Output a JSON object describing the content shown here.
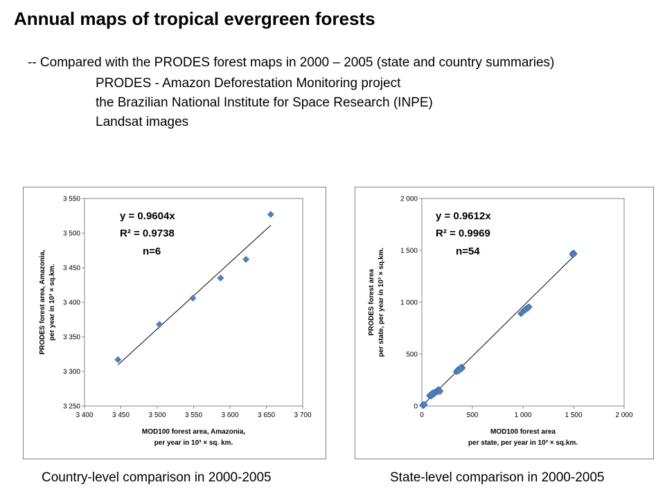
{
  "header": {
    "title": "Annual maps of tropical evergreen forests",
    "subtitle": "-- Compared with the PRODES forest maps in 2000 – 2005   (state and country summaries)",
    "lines": [
      "PRODES - Amazon Deforestation Monitoring project",
      "the Brazilian National Institute for Space Research (INPE)",
      "Landsat images"
    ]
  },
  "captions": {
    "left": "Country-level comparison in 2000-2005",
    "right": "State-level comparison in 2000-2005"
  },
  "colors": {
    "marker": "#4f81bd",
    "trendline": "#000000",
    "border": "#7f7f7f"
  },
  "chart_data": [
    {
      "type": "scatter",
      "xlabel_line1": "MOD100 forest area, Amazonia,",
      "xlabel_line2": "per year in 10³ × sq. km.",
      "ylabel_line1": "PRODES  forest area, Amazonia,",
      "ylabel_line2": "per year in 10³ × sq.km.",
      "xlim": [
        3400,
        3700
      ],
      "ylim": [
        3250,
        3550
      ],
      "xticks": [
        3400,
        3450,
        3500,
        3550,
        3600,
        3650,
        3700
      ],
      "yticks": [
        3250,
        3300,
        3350,
        3400,
        3450,
        3500,
        3550
      ],
      "xtick_labels": [
        "3 400",
        "3 450",
        "3 500",
        "3 550",
        "3 600",
        "3 650",
        "3 700"
      ],
      "ytick_labels": [
        "3 250",
        "3 300",
        "3 350",
        "3 400",
        "3 450",
        "3 500",
        "3 550"
      ],
      "points": [
        [
          3446,
          3317
        ],
        [
          3503,
          3368
        ],
        [
          3549,
          3406
        ],
        [
          3587,
          3435
        ],
        [
          3622,
          3462
        ],
        [
          3656,
          3527
        ]
      ],
      "trendline": {
        "slope": 0.9604,
        "x_range": [
          3446,
          3656
        ]
      },
      "annotations": [
        "y = 0.9604x",
        "R² = 0.9738",
        "n=6"
      ],
      "grid": false
    },
    {
      "type": "scatter",
      "xlabel_line1": "MOD100 forest area",
      "xlabel_line2": "per state, per year in 10³ × sq.km.",
      "ylabel_line1": "PRODES forest area",
      "ylabel_line2": "per state, per year in 10³ × sq.km.",
      "xlim": [
        0,
        2000
      ],
      "ylim": [
        0,
        2000
      ],
      "xticks": [
        0,
        500,
        1000,
        1500,
        2000
      ],
      "yticks": [
        0,
        500,
        1000,
        1500,
        2000
      ],
      "xtick_labels": [
        "0",
        "500",
        "1 000",
        "1 500",
        "2 000"
      ],
      "ytick_labels": [
        "0",
        "500",
        "1 000",
        "1 500",
        "2 000"
      ],
      "points": [
        [
          10,
          8
        ],
        [
          15,
          12
        ],
        [
          20,
          10
        ],
        [
          12,
          14
        ],
        [
          18,
          6
        ],
        [
          25,
          15
        ],
        [
          75,
          100
        ],
        [
          85,
          110
        ],
        [
          90,
          95
        ],
        [
          100,
          120
        ],
        [
          105,
          105
        ],
        [
          115,
          130
        ],
        [
          120,
          115
        ],
        [
          130,
          125
        ],
        [
          140,
          140
        ],
        [
          150,
          150
        ],
        [
          155,
          135
        ],
        [
          165,
          160
        ],
        [
          175,
          150
        ],
        [
          180,
          140
        ],
        [
          110,
          125
        ],
        [
          95,
          112
        ],
        [
          340,
          330
        ],
        [
          350,
          340
        ],
        [
          360,
          345
        ],
        [
          370,
          355
        ],
        [
          380,
          365
        ],
        [
          390,
          375
        ],
        [
          400,
          370
        ],
        [
          395,
          360
        ],
        [
          355,
          350
        ],
        [
          375,
          362
        ],
        [
          385,
          368
        ],
        [
          365,
          338
        ],
        [
          980,
          890
        ],
        [
          990,
          900
        ],
        [
          1000,
          910
        ],
        [
          1010,
          920
        ],
        [
          1020,
          930
        ],
        [
          1030,
          935
        ],
        [
          1040,
          945
        ],
        [
          1050,
          950
        ],
        [
          1060,
          955
        ],
        [
          995,
          905
        ],
        [
          1015,
          925
        ],
        [
          1045,
          940
        ],
        [
          1025,
          928
        ],
        [
          1055,
          948
        ],
        [
          1490,
          1470
        ],
        [
          1495,
          1460
        ],
        [
          1500,
          1475
        ],
        [
          1505,
          1465
        ],
        [
          1492,
          1455
        ],
        [
          1498,
          1468
        ]
      ],
      "trendline": {
        "slope": 0.9612,
        "x_range": [
          0,
          1510
        ]
      },
      "annotations": [
        "y = 0.9612x",
        "R² = 0.9969",
        "n=54"
      ],
      "grid": false
    }
  ]
}
